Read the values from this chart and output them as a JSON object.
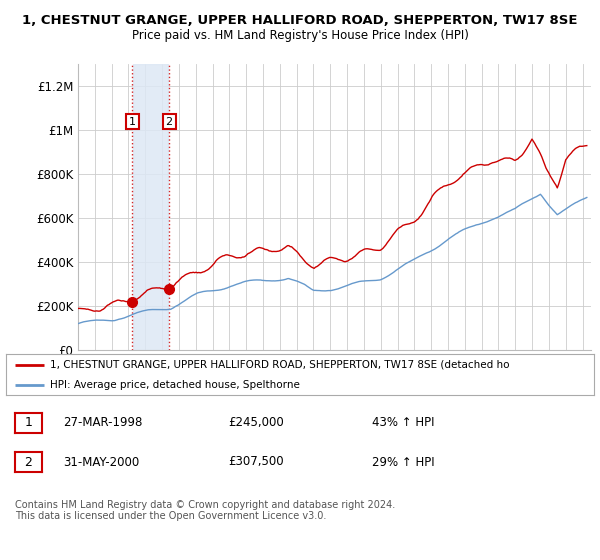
{
  "title_line1": "1, CHESTNUT GRANGE, UPPER HALLIFORD ROAD, SHEPPERTON, TW17 8SE",
  "title_line2": "Price paid vs. HM Land Registry's House Price Index (HPI)",
  "ylim": [
    0,
    1300000
  ],
  "xlim_start": 1995.0,
  "xlim_end": 2025.5,
  "yticks": [
    0,
    200000,
    400000,
    600000,
    800000,
    1000000,
    1200000
  ],
  "ytick_labels": [
    "£0",
    "£200K",
    "£400K",
    "£600K",
    "£800K",
    "£1M",
    "£1.2M"
  ],
  "transaction1_x": 1998.23,
  "transaction1_y": 245000,
  "transaction2_x": 2000.42,
  "transaction2_y": 307500,
  "hpi_color": "#6699cc",
  "price_color": "#cc0000",
  "shaded_region_color": "#dde8f5",
  "legend_price_label": "1, CHESTNUT GRANGE, UPPER HALLIFORD ROAD, SHEPPERTON, TW17 8SE (detached ho",
  "legend_hpi_label": "HPI: Average price, detached house, Spelthorne",
  "table_row1": [
    "1",
    "27-MAR-1998",
    "£245,000",
    "43% ↑ HPI"
  ],
  "table_row2": [
    "2",
    "31-MAY-2000",
    "£307,500",
    "29% ↑ HPI"
  ],
  "footer": "Contains HM Land Registry data © Crown copyright and database right 2024.\nThis data is licensed under the Open Government Licence v3.0.",
  "bg_color": "#ffffff",
  "grid_color": "#cccccc"
}
